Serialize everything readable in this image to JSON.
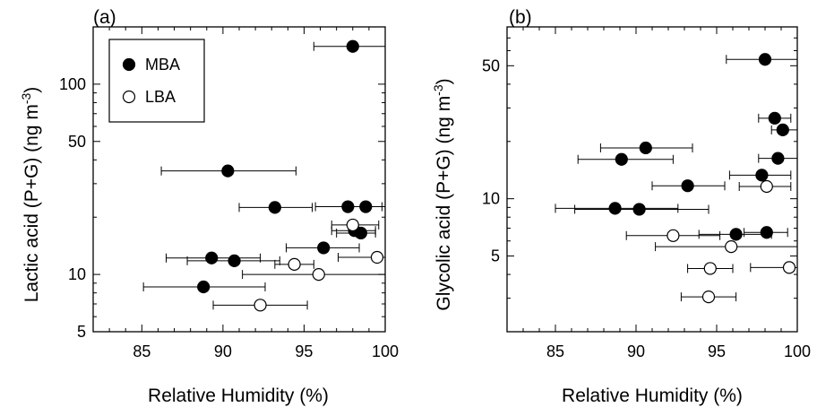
{
  "chart_data": [
    {
      "type": "scatter",
      "panel_label": "(a)",
      "xlabel": "Relative Humidity (%)",
      "ylabel": "Lactic acid (P+G) (ng m",
      "ylabel_sup": "-3",
      "ylabel_close": ")",
      "xlim": [
        82,
        100
      ],
      "ylim": [
        5,
        200
      ],
      "yscale": "log",
      "x_ticks": [
        85,
        90,
        95,
        100
      ],
      "y_ticks": [
        5,
        10,
        50,
        100
      ],
      "legend_position": "top-left",
      "series": [
        {
          "name": "MBA",
          "marker": "filled-circle",
          "color": "#000000",
          "points": [
            {
              "x": 98.0,
              "y": 158,
              "xerr": [
                95.6,
                100
              ]
            },
            {
              "x": 90.3,
              "y": 35,
              "xerr": [
                86.2,
                94.5
              ]
            },
            {
              "x": 93.2,
              "y": 22.5,
              "xerr": [
                91.0,
                95.5
              ]
            },
            {
              "x": 97.7,
              "y": 22.7,
              "xerr": [
                95.7,
                99.8
              ]
            },
            {
              "x": 98.8,
              "y": 22.7,
              "xerr": [
                97.6,
                100
              ]
            },
            {
              "x": 98.1,
              "y": 17.0,
              "xerr": [
                96.7,
                99.4
              ]
            },
            {
              "x": 98.5,
              "y": 16.5,
              "xerr": [
                97.0,
                99.4
              ]
            },
            {
              "x": 96.2,
              "y": 13.8,
              "xerr": [
                93.9,
                98.4
              ]
            },
            {
              "x": 89.3,
              "y": 12.2,
              "xerr": [
                86.5,
                92.3
              ]
            },
            {
              "x": 90.7,
              "y": 11.8,
              "xerr": [
                87.8,
                93.5
              ]
            },
            {
              "x": 88.8,
              "y": 8.6,
              "xerr": [
                85.1,
                92.6
              ]
            }
          ]
        },
        {
          "name": "LBA",
          "marker": "open-circle",
          "color": "#000000",
          "points": [
            {
              "x": 98.0,
              "y": 18.2,
              "xerr": [
                96.7,
                99.6
              ]
            },
            {
              "x": 99.5,
              "y": 12.3,
              "xerr": [
                97.1,
                100
              ]
            },
            {
              "x": 94.4,
              "y": 11.3,
              "xerr": [
                93.2,
                95.6
              ]
            },
            {
              "x": 95.9,
              "y": 10.0,
              "xerr": [
                91.2,
                100
              ]
            },
            {
              "x": 92.3,
              "y": 6.9,
              "xerr": [
                89.4,
                95.2
              ]
            }
          ]
        }
      ]
    },
    {
      "type": "scatter",
      "panel_label": "(b)",
      "xlabel": "Relative Humidity (%)",
      "ylabel": "Glycolic acid (P+G) (ng m",
      "ylabel_sup": "-3",
      "ylabel_close": ")",
      "xlim": [
        82,
        100
      ],
      "ylim": [
        2,
        80
      ],
      "yscale": "log",
      "x_ticks": [
        85,
        90,
        95,
        100
      ],
      "y_ticks": [
        5,
        10,
        50
      ],
      "series": [
        {
          "name": "MBA",
          "marker": "filled-circle",
          "color": "#000000",
          "points": [
            {
              "x": 98.0,
              "y": 54,
              "xerr": [
                95.6,
                100
              ]
            },
            {
              "x": 98.6,
              "y": 26.5,
              "xerr": [
                97.6,
                99.6
              ]
            },
            {
              "x": 99.1,
              "y": 23.0,
              "xerr": [
                98.4,
                100
              ]
            },
            {
              "x": 90.6,
              "y": 18.5,
              "xerr": [
                87.8,
                93.5
              ]
            },
            {
              "x": 89.1,
              "y": 16.1,
              "xerr": [
                86.4,
                92.3
              ]
            },
            {
              "x": 98.8,
              "y": 16.3,
              "xerr": [
                97.6,
                100
              ]
            },
            {
              "x": 97.8,
              "y": 13.3,
              "xerr": [
                95.8,
                99.6
              ]
            },
            {
              "x": 93.2,
              "y": 11.7,
              "xerr": [
                91.0,
                95.5
              ]
            },
            {
              "x": 88.7,
              "y": 8.9,
              "xerr": [
                85.0,
                92.6
              ]
            },
            {
              "x": 90.2,
              "y": 8.8,
              "xerr": [
                86.2,
                94.5
              ]
            },
            {
              "x": 96.2,
              "y": 6.5,
              "xerr": [
                93.9,
                98.4
              ]
            },
            {
              "x": 98.1,
              "y": 6.65,
              "xerr": [
                96.7,
                99.4
              ]
            }
          ]
        },
        {
          "name": "LBA",
          "marker": "open-circle",
          "color": "#000000",
          "points": [
            {
              "x": 98.1,
              "y": 11.6,
              "xerr": [
                96.4,
                99.6
              ]
            },
            {
              "x": 92.3,
              "y": 6.4,
              "xerr": [
                89.4,
                95.2
              ]
            },
            {
              "x": 95.9,
              "y": 5.6,
              "xerr": [
                91.2,
                100
              ]
            },
            {
              "x": 94.6,
              "y": 4.3,
              "xerr": [
                93.2,
                96.0
              ]
            },
            {
              "x": 99.5,
              "y": 4.35,
              "xerr": [
                97.1,
                100
              ]
            },
            {
              "x": 94.5,
              "y": 3.05,
              "xerr": [
                92.8,
                96.2
              ]
            }
          ]
        }
      ]
    }
  ]
}
